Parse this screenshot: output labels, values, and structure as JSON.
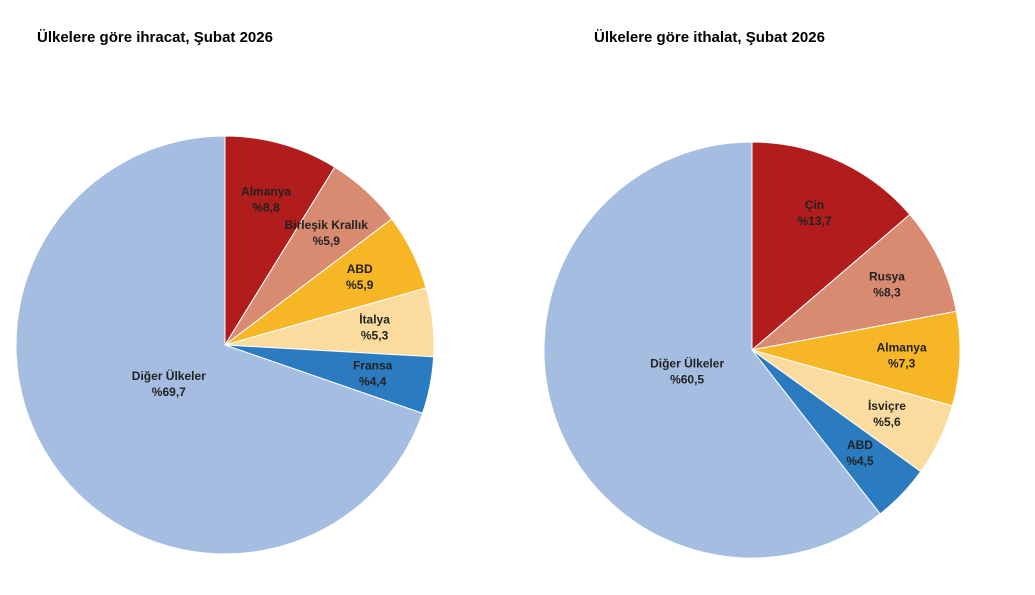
{
  "chart_data": [
    {
      "type": "pie",
      "title": "Ülkelere göre ihracat, Şubat 2026",
      "categories": [
        "Almanya",
        "Birleşik Krallık",
        "ABD",
        "İtalya",
        "Fransa",
        "Diğer Ülkeler"
      ],
      "values": [
        8.8,
        5.9,
        5.9,
        5.3,
        4.4,
        69.7
      ],
      "value_labels": [
        "%8,8",
        "%5,9",
        "%5,9",
        "%5,3",
        "%4,4",
        "%69,7"
      ],
      "colors": [
        "#b11c1c",
        "#d98b72",
        "#f7b626",
        "#fcdc9e",
        "#2a7bc0",
        "#a4bde1"
      ]
    },
    {
      "type": "pie",
      "title": "Ülkelere göre ithalat, Şubat 2026",
      "categories": [
        "Çin",
        "Rusya",
        "Almanya",
        "İsviçre",
        "ABD",
        "Diğer Ülkeler"
      ],
      "values": [
        13.7,
        8.3,
        7.3,
        5.6,
        4.5,
        60.5
      ],
      "value_labels": [
        "%13,7",
        "%8,3",
        "%7,3",
        "%5,6",
        "%4,5",
        "%60,5"
      ],
      "colors": [
        "#b11c1c",
        "#d98b72",
        "#f7b626",
        "#fcdc9e",
        "#2a7bc0",
        "#a4bde1"
      ]
    }
  ]
}
